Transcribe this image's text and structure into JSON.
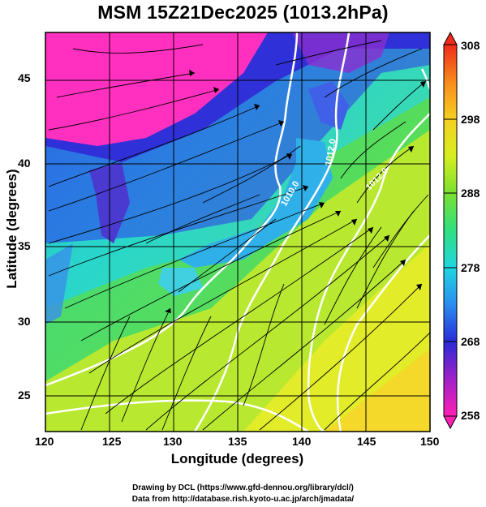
{
  "title": "MSM 15Z21Dec2025 (1013.2hPa)",
  "axes": {
    "ylabel": "Latitude  (degrees)",
    "xlabel": "Longitude (degrees)",
    "xticks": [
      "120",
      "125",
      "130",
      "135",
      "140",
      "145",
      "150"
    ],
    "yticks": [
      "45",
      "40",
      "35",
      "30",
      "25"
    ]
  },
  "colorbar": {
    "ticks": [
      "308",
      "298",
      "288",
      "278",
      "268",
      "258"
    ],
    "range": [
      258,
      308
    ]
  },
  "contour_labels": [
    "1012.0",
    "1012.0",
    "1010.0"
  ],
  "credits": {
    "line1": "Drawing by DCL (https://www.gfd-dennou.org/library/dcl/)",
    "line2": "Data from http://database.rish.kyoto-u.ac.jp/arch/jmadata/"
  },
  "map": {
    "lon_range": [
      120,
      150
    ],
    "lat_range": [
      22.5,
      47.8
    ],
    "projection": "equirectangular"
  }
}
